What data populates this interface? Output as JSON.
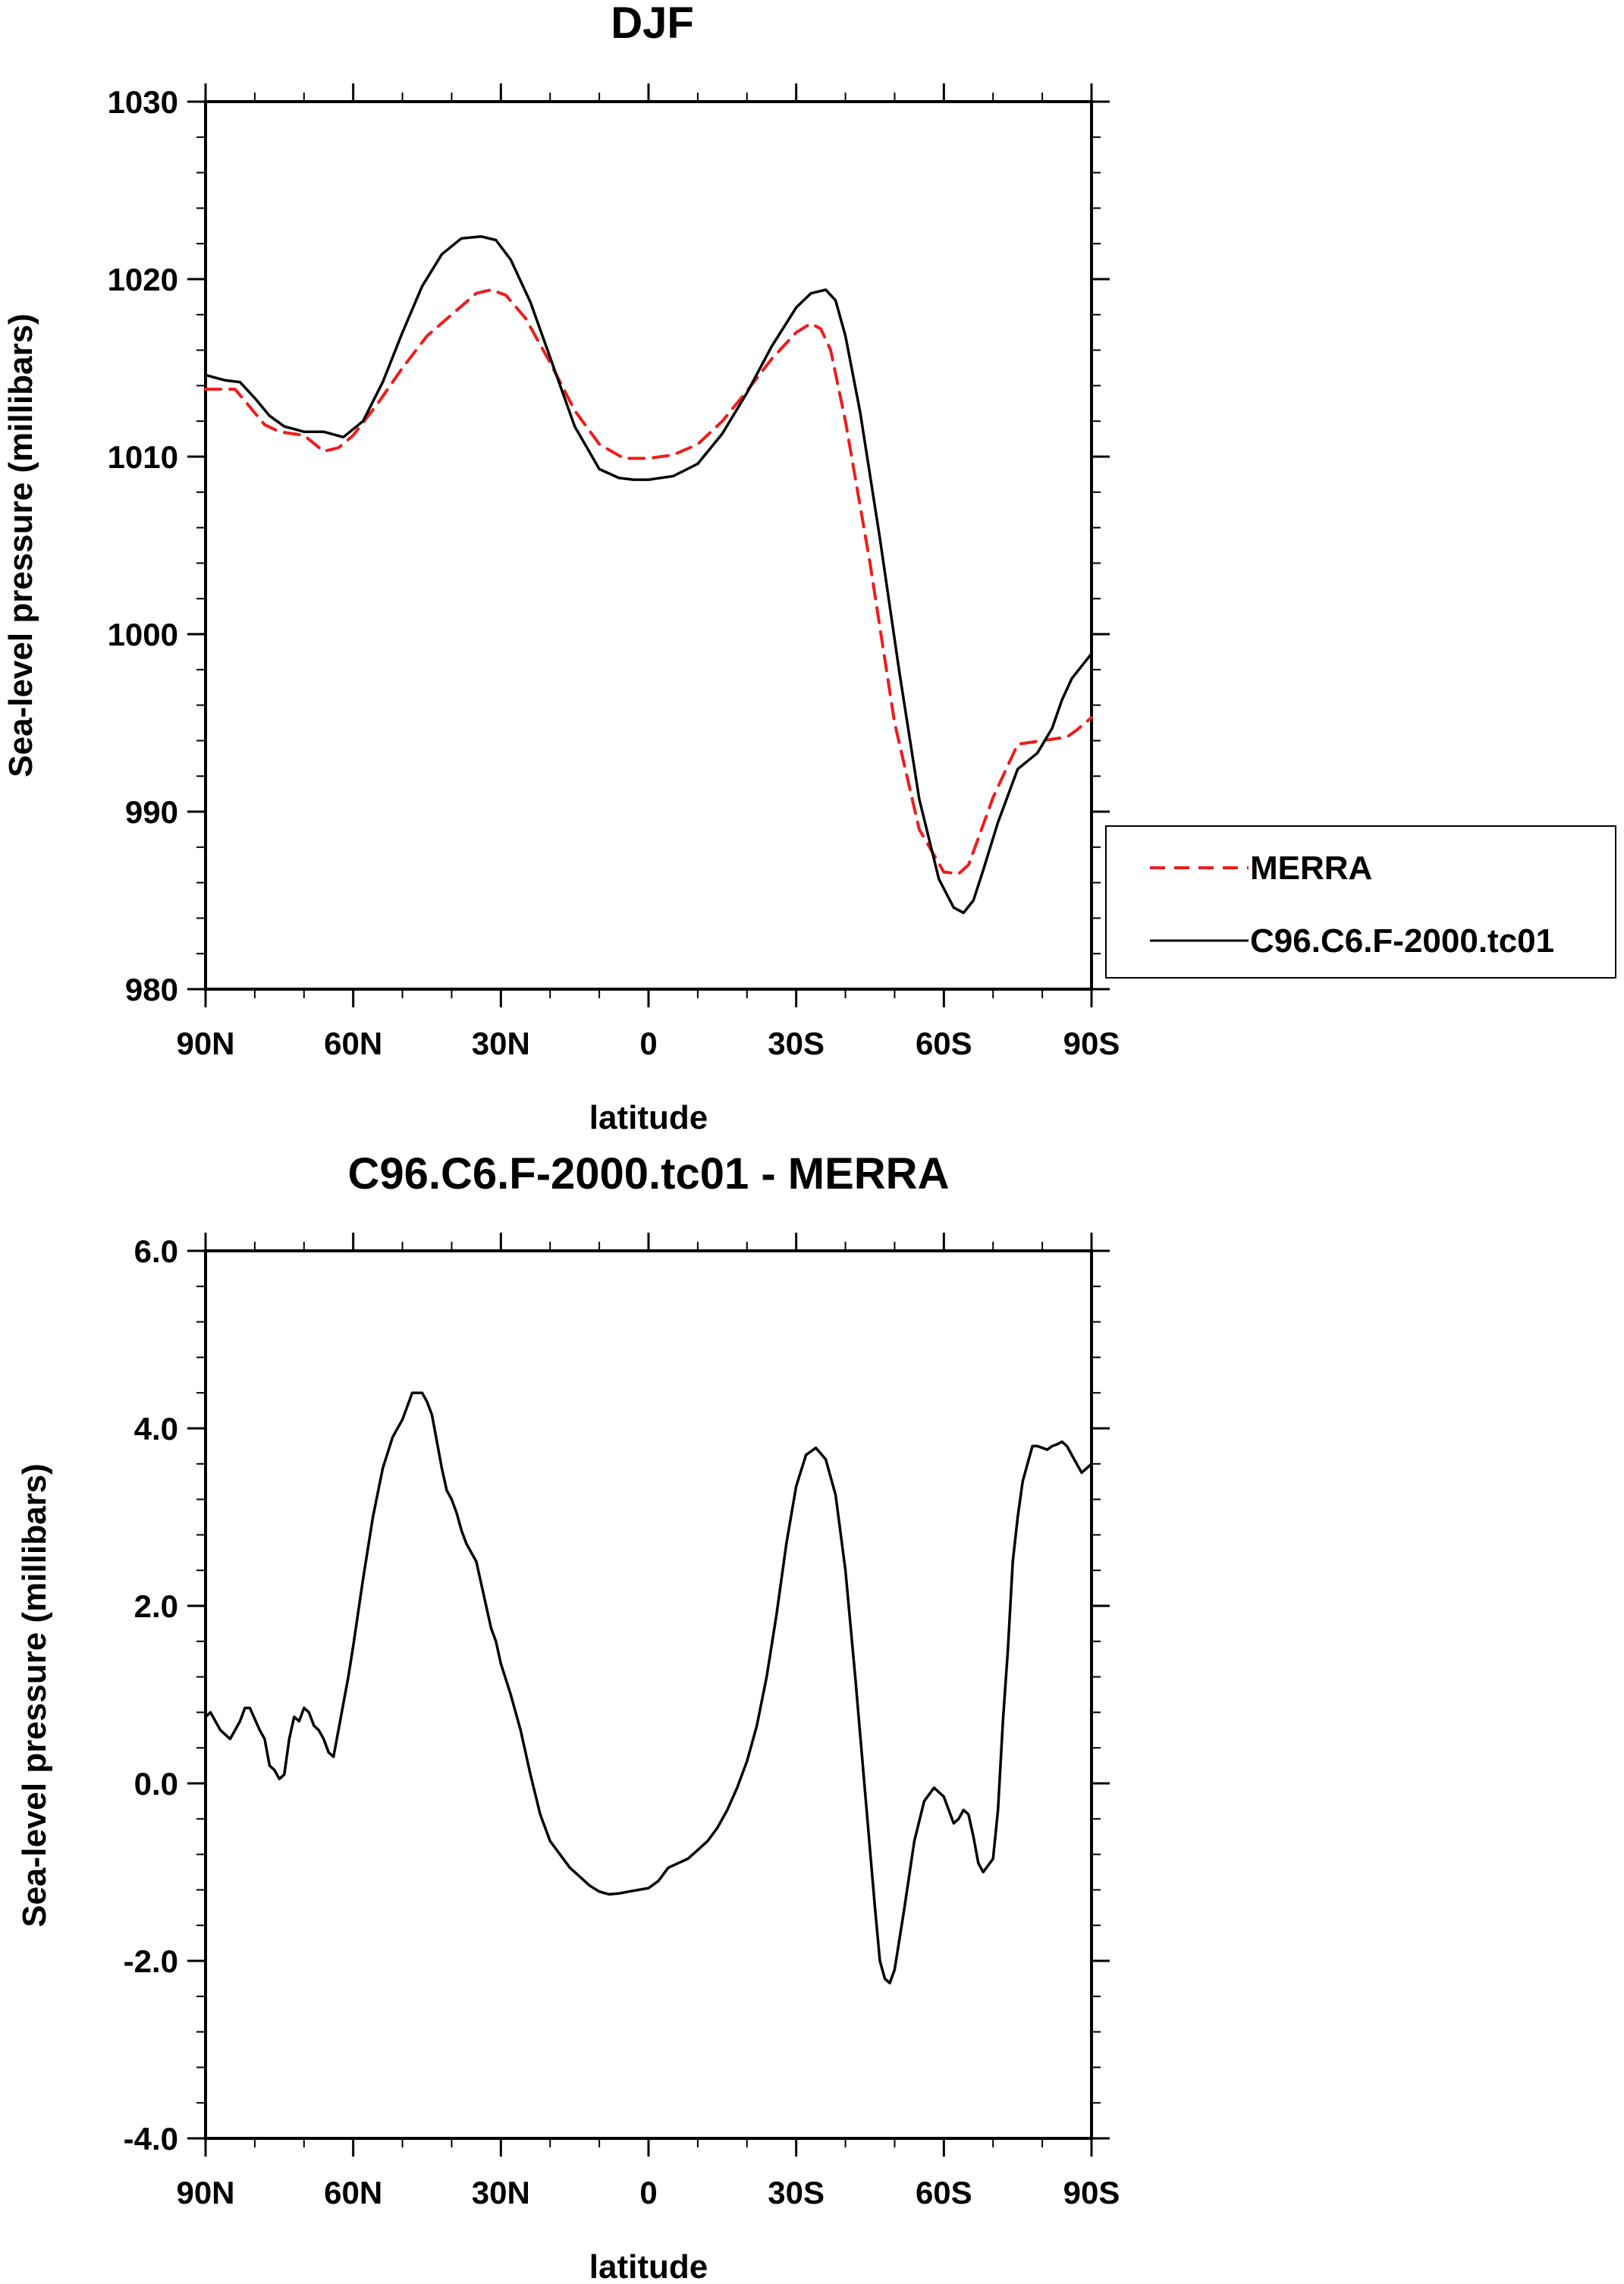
{
  "chart_data": [
    {
      "type": "line",
      "title": "DJF",
      "xlabel": "latitude",
      "ylabel": "Sea-level pressure (millibars)",
      "x_unit": "degrees latitude (positive = North)",
      "xlim": [
        90,
        -90
      ],
      "ylim": [
        980,
        1030
      ],
      "x_ticks": [
        90,
        60,
        30,
        0,
        -30,
        -60,
        -90
      ],
      "x_tick_labels": [
        "90N",
        "60N",
        "30N",
        "0",
        "30S",
        "60S",
        "90S"
      ],
      "y_ticks": [
        980,
        990,
        1000,
        1010,
        1020,
        1030
      ],
      "y_tick_labels": [
        "980",
        "990",
        "1000",
        "1010",
        "1020",
        "1030"
      ],
      "legend": {
        "placement": "right",
        "entries": [
          "MERRA",
          "C96.C6.F-2000.tc01"
        ]
      },
      "series": [
        {
          "name": "MERRA",
          "color": "#ee1c1c",
          "dash": "dashed",
          "x": [
            90,
            84,
            81,
            78,
            75,
            70,
            66,
            63,
            60,
            55,
            50,
            45,
            40,
            35,
            32,
            29,
            25,
            20,
            15,
            10,
            5,
            0,
            -5,
            -10,
            -15,
            -20,
            -25,
            -30,
            -33,
            -35,
            -37,
            -40,
            -45,
            -50,
            -55,
            -60,
            -63,
            -65,
            -67,
            -70,
            -75,
            -80,
            -85,
            -87,
            -90
          ],
          "y": [
            1013.8,
            1013.8,
            1012.8,
            1011.8,
            1011.4,
            1011.2,
            1010.3,
            1010.5,
            1011.2,
            1013,
            1015,
            1016.8,
            1018,
            1019.2,
            1019.4,
            1019.1,
            1017.8,
            1015.3,
            1012.6,
            1010.7,
            1009.9,
            1009.9,
            1010.1,
            1010.7,
            1012,
            1013.7,
            1015.5,
            1017,
            1017.5,
            1017.2,
            1016,
            1012,
            1004,
            995,
            989,
            986.6,
            986.5,
            987,
            988.5,
            990.8,
            993.8,
            994,
            994.2,
            994.6,
            995.3
          ]
        },
        {
          "name": "C96.C6.F-2000.tc01",
          "color": "#000000",
          "dash": "solid",
          "x": [
            90,
            86,
            83,
            80,
            77,
            74,
            70,
            66,
            62,
            58,
            54,
            50,
            46,
            42,
            38,
            34,
            31,
            28,
            24,
            20,
            15,
            10,
            6,
            3,
            0,
            -5,
            -10,
            -15,
            -20,
            -25,
            -30,
            -33,
            -36,
            -38,
            -40,
            -43,
            -47,
            -51,
            -55,
            -59,
            -62,
            -64,
            -66,
            -68,
            -71,
            -75,
            -79,
            -82,
            -84,
            -86,
            -88,
            -90
          ],
          "y": [
            1014.6,
            1014.3,
            1014.2,
            1013.3,
            1012.3,
            1011.7,
            1011.4,
            1011.4,
            1011.1,
            1012,
            1014.2,
            1017,
            1019.6,
            1021.4,
            1022.3,
            1022.4,
            1022.2,
            1021.1,
            1018.7,
            1015.6,
            1011.7,
            1009.3,
            1008.8,
            1008.7,
            1008.7,
            1008.9,
            1009.6,
            1011.3,
            1013.6,
            1016.2,
            1018.4,
            1019.2,
            1019.4,
            1018.8,
            1016.8,
            1012.5,
            1005.4,
            997.8,
            990.7,
            986.2,
            984.6,
            984.3,
            985,
            986.7,
            989.4,
            992.4,
            993.3,
            994.7,
            996.3,
            997.5,
            998.2,
            998.9
          ]
        }
      ]
    },
    {
      "type": "line",
      "title": "C96.C6.F-2000.tc01 - MERRA",
      "xlabel": "latitude",
      "ylabel": "Sea-level pressure (millibars)",
      "x_unit": "degrees latitude (positive = North)",
      "xlim": [
        90,
        -90
      ],
      "ylim": [
        -4,
        6
      ],
      "x_ticks": [
        90,
        60,
        30,
        0,
        -30,
        -60,
        -90
      ],
      "x_tick_labels": [
        "90N",
        "60N",
        "30N",
        "0",
        "30S",
        "60S",
        "90S"
      ],
      "y_ticks": [
        -4,
        -2,
        0,
        2,
        4,
        6
      ],
      "y_tick_labels": [
        "-4.0",
        "-2.0",
        "0.0",
        "2.0",
        "4.0",
        "6.0"
      ],
      "series": [
        {
          "name": "C96.C6.F-2000.tc01 - MERRA",
          "color": "#000000",
          "dash": "solid",
          "x": [
            90,
            89,
            87,
            85,
            83,
            82,
            81,
            79,
            78,
            77,
            76,
            75,
            74,
            73,
            72,
            71,
            70,
            69,
            68,
            67,
            66,
            65,
            64,
            63,
            62,
            61,
            60,
            58,
            56,
            54,
            52,
            50,
            48,
            46,
            45,
            44,
            43,
            42,
            41,
            40,
            39,
            38,
            37,
            35,
            33,
            32,
            31,
            30,
            28,
            26,
            24,
            22,
            20,
            18,
            16,
            14,
            12,
            10,
            8,
            6,
            4,
            2,
            0,
            -2,
            -4,
            -6,
            -8,
            -10,
            -12,
            -14,
            -15,
            -16,
            -18,
            -20,
            -22,
            -24,
            -26,
            -28,
            -30,
            -32,
            -34,
            -36,
            -38,
            -40,
            -42,
            -44,
            -46,
            -47,
            -48,
            -49,
            -50,
            -52,
            -54,
            -56,
            -58,
            -60,
            -61,
            -62,
            -63,
            -64,
            -65,
            -66,
            -67,
            -68,
            -70,
            -71,
            -72,
            -73,
            -74,
            -75,
            -76,
            -77,
            -78,
            -79,
            -80,
            -81,
            -82,
            -83,
            -84,
            -85,
            -86,
            -87,
            -88,
            -89,
            -90
          ],
          "y": [
            0.75,
            0.8,
            0.6,
            0.5,
            0.7,
            0.85,
            0.85,
            0.6,
            0.5,
            0.2,
            0.15,
            0.05,
            0.1,
            0.5,
            0.75,
            0.7,
            0.85,
            0.8,
            0.65,
            0.6,
            0.5,
            0.35,
            0.3,
            0.6,
            0.9,
            1.2,
            1.55,
            2.3,
            3.0,
            3.55,
            3.9,
            4.1,
            4.4,
            4.4,
            4.3,
            4.15,
            3.85,
            3.55,
            3.3,
            3.2,
            3.05,
            2.85,
            2.7,
            2.5,
            2.0,
            1.75,
            1.6,
            1.35,
            1.0,
            0.6,
            0.1,
            -0.35,
            -0.65,
            -0.8,
            -0.95,
            -1.05,
            -1.15,
            -1.22,
            -1.25,
            -1.24,
            -1.22,
            -1.2,
            -1.18,
            -1.1,
            -0.95,
            -0.9,
            -0.85,
            -0.75,
            -0.65,
            -0.5,
            -0.4,
            -0.3,
            -0.05,
            0.25,
            0.65,
            1.2,
            1.9,
            2.7,
            3.35,
            3.7,
            3.78,
            3.65,
            3.25,
            2.4,
            1.2,
            -0.1,
            -1.4,
            -2.0,
            -2.2,
            -2.25,
            -2.1,
            -1.4,
            -0.65,
            -0.2,
            -0.05,
            -0.15,
            -0.3,
            -0.45,
            -0.4,
            -0.3,
            -0.35,
            -0.6,
            -0.9,
            -1.0,
            -0.85,
            -0.3,
            0.7,
            1.5,
            2.5,
            3.0,
            3.4,
            3.6,
            3.8,
            3.8,
            3.78,
            3.76,
            3.8,
            3.82,
            3.85,
            3.8,
            3.7,
            3.6,
            3.5,
            3.55,
            3.6
          ]
        }
      ]
    }
  ]
}
